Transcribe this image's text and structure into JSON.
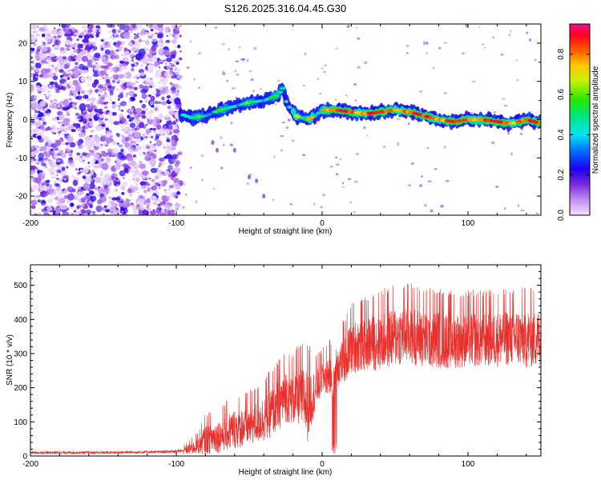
{
  "title": "S126.2025.316.04.45.G30",
  "chart_data": [
    {
      "type": "heatmap",
      "xlabel": "Height of straight line (km)",
      "ylabel": "Frequency (Hz)",
      "xlim": [
        -200,
        150
      ],
      "ylim": [
        -25,
        25
      ],
      "xticks": [
        -200,
        -100,
        0,
        100
      ],
      "xtick_labels": [
        "-200",
        "-100",
        "0",
        "100"
      ],
      "yticks": [
        -20,
        -10,
        0,
        10,
        20
      ],
      "ytick_labels": [
        "-20",
        "-10",
        "0",
        "10",
        "20"
      ],
      "colorbar": {
        "label": "Normalized spectral amplitude",
        "range": [
          0,
          0.95
        ],
        "ticks": [
          0,
          0.2,
          0.4,
          0.6,
          0.8
        ],
        "tick_labels": [
          "0.0",
          "0.2",
          "0.4",
          "0.6",
          "0.8"
        ],
        "colormap": "rainbow"
      },
      "ridge": [
        [
          -97,
          1.5
        ],
        [
          -90,
          0.5
        ],
        [
          -80,
          1
        ],
        [
          -70,
          2.5
        ],
        [
          -60,
          3.5
        ],
        [
          -50,
          4.5
        ],
        [
          -40,
          5
        ],
        [
          -30,
          6.5
        ],
        [
          -27,
          8.5
        ],
        [
          -25,
          5
        ],
        [
          -22,
          3
        ],
        [
          -18,
          1
        ],
        [
          -10,
          0
        ],
        [
          -5,
          1
        ],
        [
          0,
          2.5
        ],
        [
          10,
          2.5
        ],
        [
          20,
          2
        ],
        [
          30,
          1.5
        ],
        [
          40,
          2
        ],
        [
          50,
          2.5
        ],
        [
          60,
          2
        ],
        [
          70,
          1
        ],
        [
          80,
          0
        ],
        [
          90,
          -0.5
        ],
        [
          100,
          0
        ],
        [
          110,
          0
        ],
        [
          120,
          -0.5
        ],
        [
          130,
          -1
        ],
        [
          140,
          0
        ],
        [
          150,
          -1
        ]
      ],
      "noise_region": [
        -200,
        -97
      ]
    },
    {
      "type": "line",
      "xlabel": "Height of straight line (km)",
      "ylabel": "SNR (10 * v/v)",
      "xlim": [
        -200,
        150
      ],
      "ylim": [
        0,
        560
      ],
      "xticks": [
        -200,
        -100,
        0,
        100
      ],
      "xtick_labels": [
        "-200",
        "-100",
        "0",
        "100"
      ],
      "yticks": [
        0,
        100,
        200,
        300,
        400,
        500
      ],
      "ytick_labels": [
        "0",
        "100",
        "200",
        "300",
        "400",
        "500"
      ],
      "color": "#e8302d",
      "series": [
        {
          "name": "SNR",
          "envelope": [
            [
              -200,
              10,
              8
            ],
            [
              -150,
              10,
              8
            ],
            [
              -110,
              12,
              8
            ],
            [
              -95,
              15,
              10
            ],
            [
              -85,
              30,
              25
            ],
            [
              -80,
              50,
              45
            ],
            [
              -70,
              60,
              50
            ],
            [
              -60,
              80,
              60
            ],
            [
              -50,
              90,
              60
            ],
            [
              -40,
              110,
              70
            ],
            [
              -30,
              150,
              80
            ],
            [
              -25,
              180,
              80
            ],
            [
              -20,
              170,
              80
            ],
            [
              -15,
              180,
              90
            ],
            [
              -10,
              150,
              110
            ],
            [
              -5,
              190,
              60
            ],
            [
              0,
              230,
              50
            ],
            [
              5,
              240,
              60
            ],
            [
              8,
              220,
              60
            ],
            [
              10,
              270,
              70
            ],
            [
              15,
              280,
              70
            ],
            [
              20,
              320,
              80
            ],
            [
              30,
              330,
              80
            ],
            [
              40,
              340,
              90
            ],
            [
              50,
              350,
              90
            ],
            [
              60,
              360,
              90
            ],
            [
              70,
              345,
              90
            ],
            [
              80,
              345,
              90
            ],
            [
              90,
              340,
              85
            ],
            [
              100,
              345,
              85
            ],
            [
              110,
              345,
              85
            ],
            [
              120,
              345,
              85
            ],
            [
              130,
              350,
              85
            ],
            [
              140,
              345,
              90
            ],
            [
              150,
              345,
              85
            ]
          ]
        }
      ]
    }
  ]
}
